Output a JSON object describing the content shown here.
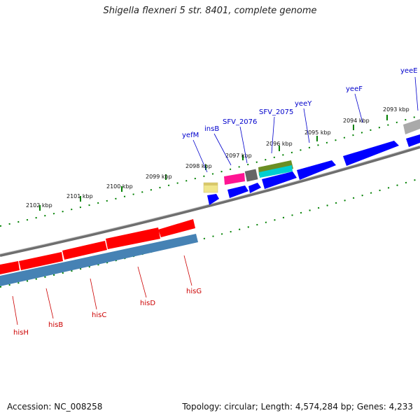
{
  "title": "Shigella flexneri 5 str. 8401, complete genome",
  "footer": {
    "accession": "Accession: NC_008258",
    "summary": "Topology: circular; Length: 4,574,284 bp; Genes: 4,233"
  },
  "colors": {
    "forward_cds": "#0000ff",
    "reverse_cds": "#ff0000",
    "reverse_shadow": "#4682b4",
    "forward_label": "#0000cc",
    "reverse_label": "#cc0000",
    "tick": "#008000",
    "backbone": "#808080"
  },
  "ticks": [
    {
      "label": "2093 kbp"
    },
    {
      "label": "2094 kbp"
    },
    {
      "label": "2095 kbp"
    },
    {
      "label": "2096 kbp"
    },
    {
      "label": "2097 kbp"
    },
    {
      "label": "2098 kbp"
    },
    {
      "label": "2099 kbp"
    },
    {
      "label": "2100 kbp"
    },
    {
      "label": "2101 kbp"
    },
    {
      "label": "2102 kbp"
    }
  ],
  "forward_genes": [
    {
      "name": "yeeE"
    },
    {
      "name": "yeeF"
    },
    {
      "name": "yeeY"
    },
    {
      "name": "SFV_2075"
    },
    {
      "name": "SFV_2076"
    },
    {
      "name": "insB"
    },
    {
      "name": "yefM"
    }
  ],
  "reverse_genes": [
    {
      "name": "hisG"
    },
    {
      "name": "hisD"
    },
    {
      "name": "hisC"
    },
    {
      "name": "hisB"
    },
    {
      "name": "hisH"
    }
  ]
}
